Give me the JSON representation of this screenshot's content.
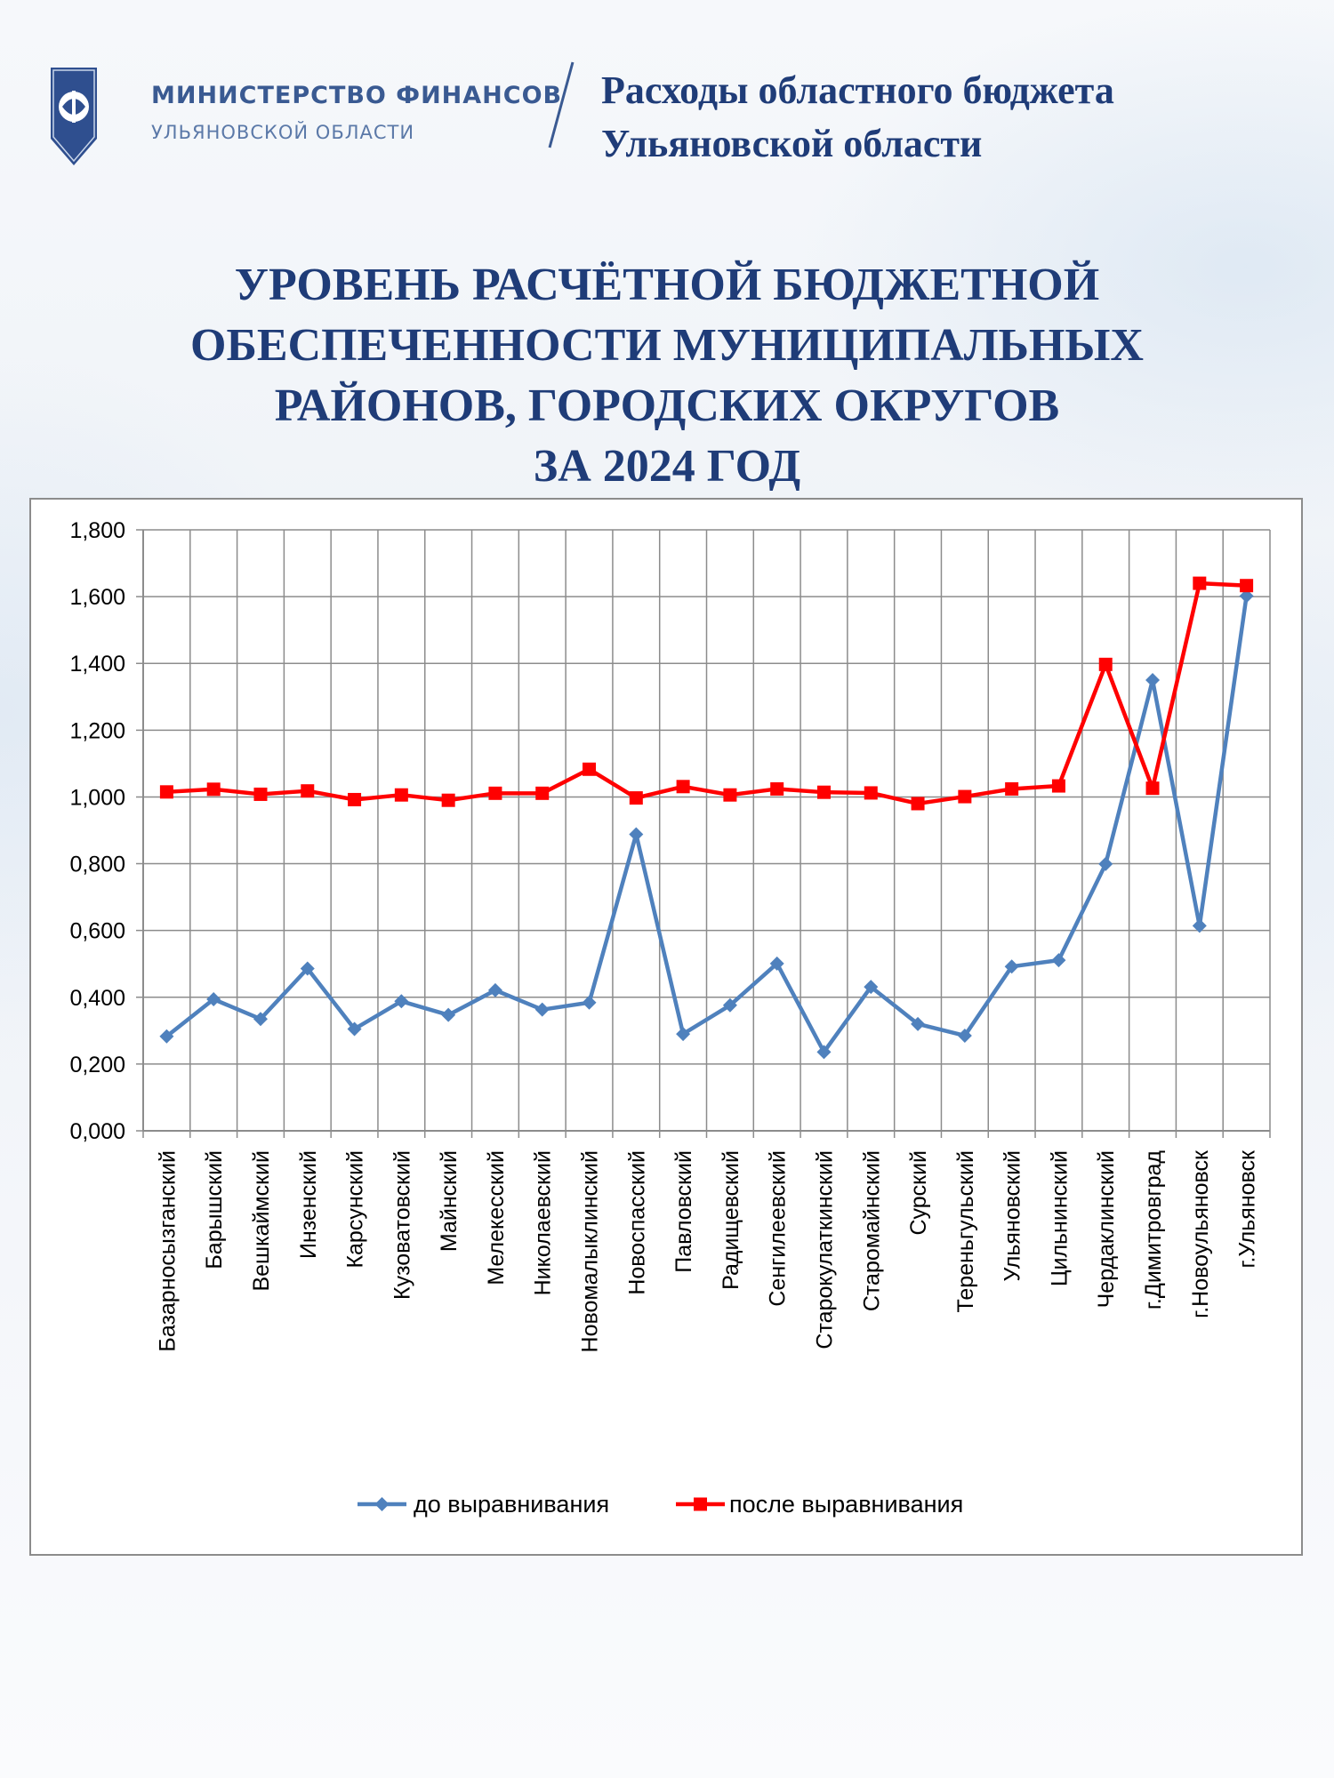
{
  "header": {
    "ministry_name": "МИНИСТЕРСТВО ФИНАНСОВ",
    "ministry_region": "УЛЬЯНОВСКОЙ ОБЛАСТИ",
    "budget_title_line1": "Расходы областного бюджета",
    "budget_title_line2": "Ульяновской области"
  },
  "main_title": {
    "line1": "УРОВЕНЬ РАСЧЁТНОЙ БЮДЖЕТНОЙ",
    "line2": "ОБЕСПЕЧЕННОСТИ МУНИЦИПАЛЬНЫХ",
    "line3": "РАЙОНОВ, ГОРОДСКИХ ОКРУГОВ",
    "line4": "ЗА 2024 ГОД"
  },
  "colors": {
    "title": "#1f3c78",
    "series_before": "#4f81bd",
    "series_after": "#ff0000",
    "grid": "#8c8c8c"
  },
  "chart_data": {
    "type": "line",
    "categories": [
      "Базарносызганский",
      "Барышский",
      "Вешкаймский",
      "Инзенский",
      "Карсунский",
      "Кузоватовский",
      "Майнский",
      "Мелекесский",
      "Николаевский",
      "Новомалыклинский",
      "Новоспасский",
      "Павловский",
      "Радищевский",
      "Сенгилеевский",
      "Старокулаткинский",
      "Старомайнский",
      "Сурский",
      "Тереньгульский",
      "Ульяновский",
      "Цильнинский",
      "Чердаклинский",
      "г.Димитровград",
      "г.Новоульяновск",
      "г.Ульяновск"
    ],
    "series": [
      {
        "name": "до выравнивания",
        "marker": "diamond",
        "values": [
          0.283,
          0.394,
          0.335,
          0.486,
          0.305,
          0.388,
          0.347,
          0.421,
          0.363,
          0.384,
          0.888,
          0.29,
          0.376,
          0.501,
          0.236,
          0.431,
          0.32,
          0.285,
          0.492,
          0.511,
          0.799,
          1.35,
          0.614,
          1.602
        ]
      },
      {
        "name": "после выравнивания",
        "marker": "square",
        "values": [
          1.015,
          1.023,
          1.008,
          1.018,
          0.992,
          1.006,
          0.99,
          1.011,
          1.011,
          1.083,
          0.997,
          1.031,
          1.006,
          1.024,
          1.014,
          1.012,
          0.98,
          1.001,
          1.024,
          1.033,
          1.397,
          1.026,
          1.64,
          1.633
        ]
      }
    ],
    "y_ticks": [
      "0,000",
      "0,200",
      "0,400",
      "0,600",
      "0,800",
      "1,000",
      "1,200",
      "1,400",
      "1,600",
      "1,800"
    ],
    "ylim": [
      0,
      1.8
    ],
    "grid": true,
    "legend_position": "bottom"
  }
}
